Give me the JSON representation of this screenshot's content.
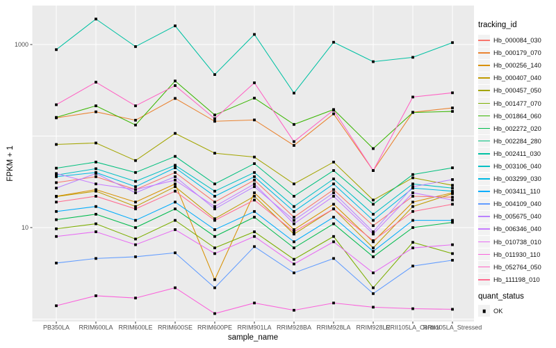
{
  "figure": {
    "y_axis_title": "FPKM + 1",
    "x_axis_title": "sample_name"
  },
  "legend": {
    "tracking_title": "tracking_id",
    "quant_title": "quant_status",
    "quant_value": "OK",
    "quant_marker": "black-square",
    "key_background": "#f2f2f2"
  },
  "colors": {
    "panel_background": "#EBEBEB",
    "gridline": "#FFFFFF",
    "tick_label": "#4D4D4D",
    "tick_mark": "#333333",
    "point": "#000000"
  },
  "chart_data": {
    "type": "line",
    "title": "",
    "xlabel": "sample_name",
    "ylabel": "FPKM + 1",
    "yscale": "log10",
    "ylim": [
      0.94,
      2700
    ],
    "grid": true,
    "legend_position": "right",
    "point_marker": "black-square",
    "yticks": [
      {
        "label": "1000",
        "value": 1000
      },
      {
        "label": "10",
        "value": 10
      }
    ],
    "minor_gridlines_at": [
      100,
      1
    ],
    "categories": [
      "PB350LA",
      "RRIM600LA",
      "RRIM600LE",
      "RRIM600SE",
      "RRIM600PE",
      "RRIM901LA",
      "RRIM928BA",
      "RRIM928LA",
      "RRIM928LE",
      "RRII105LA_Control",
      "RRII105LA_Stressed"
    ],
    "series": [
      {
        "name": "Hb_000084_030",
        "color": "#F8766D",
        "values": [
          31,
          36,
          26,
          40,
          19,
          33,
          13,
          26,
          10.5,
          22,
          21.5
        ]
      },
      {
        "name": "Hb_000179_070",
        "color": "#EA8331",
        "values": [
          158,
          184,
          149,
          258,
          145,
          150,
          79,
          175,
          42,
          182,
          203
        ]
      },
      {
        "name": "Hb_000256_140",
        "color": "#D89000",
        "values": [
          22,
          26,
          19,
          30,
          2.7,
          24,
          9.5,
          18,
          7,
          19,
          24
        ]
      },
      {
        "name": "Hb_000407_040",
        "color": "#C09B00",
        "values": [
          21.8,
          25,
          17,
          28,
          12.5,
          22,
          8.5,
          16,
          6,
          17,
          23.5
        ]
      },
      {
        "name": "Hb_000457_050",
        "color": "#A3A500",
        "values": [
          81,
          84,
          54,
          107,
          65,
          59,
          30,
          52,
          20,
          35,
          29
        ]
      },
      {
        "name": "Hb_001477_070",
        "color": "#7CAE00",
        "values": [
          9.7,
          11,
          7.5,
          12,
          6,
          9,
          4.5,
          8,
          2.2,
          6.9,
          5.2
        ]
      },
      {
        "name": "Hb_001864_060",
        "color": "#39B600",
        "values": [
          160,
          214,
          132,
          400,
          170,
          260,
          134,
          195,
          73,
          181,
          186
        ]
      },
      {
        "name": "Hb_002272_020",
        "color": "#00BB4E",
        "values": [
          12.2,
          14,
          10,
          16,
          8,
          13,
          6,
          11,
          4.8,
          10,
          11.4
        ]
      },
      {
        "name": "Hb_002284_280",
        "color": "#00BF7D",
        "values": [
          44.6,
          52,
          40,
          60,
          30,
          50,
          22,
          42,
          18,
          38,
          45
        ]
      },
      {
        "name": "Hb_002411_030",
        "color": "#00C1A3",
        "values": [
          880,
          1900,
          950,
          1600,
          470,
          1290,
          295,
          1060,
          650,
          725,
          1050
        ]
      },
      {
        "name": "Hb_003106_040",
        "color": "#00BFC4",
        "values": [
          37.5,
          44,
          32,
          48,
          25,
          40,
          17,
          34,
          14,
          30,
          27
        ]
      },
      {
        "name": "Hb_003299_030",
        "color": "#00B9E3",
        "values": [
          36,
          40,
          28,
          45,
          22,
          36,
          15,
          30,
          12,
          27,
          25
        ]
      },
      {
        "name": "Hb_003411_110",
        "color": "#00ACFC",
        "values": [
          15,
          17,
          12,
          19,
          9.5,
          15,
          7,
          13,
          5.5,
          12,
          12
        ]
      },
      {
        "name": "Hb_004109_040",
        "color": "#619CFF",
        "values": [
          4.1,
          4.6,
          4.8,
          5.3,
          2.2,
          6.2,
          3.2,
          4.6,
          1.9,
          3.8,
          4.4
        ]
      },
      {
        "name": "Hb_005675_040",
        "color": "#B983FF",
        "values": [
          27,
          39,
          24,
          36,
          16,
          28,
          12,
          24,
          9,
          28,
          33.5
        ]
      },
      {
        "name": "Hb_006346_040",
        "color": "#C77CFF",
        "values": [
          39,
          30,
          26,
          33,
          17,
          30,
          11,
          22,
          8.5,
          24,
          20
        ]
      },
      {
        "name": "Hb_010738_010",
        "color": "#E76BF3",
        "values": [
          8,
          9,
          6.5,
          9.5,
          5.2,
          8,
          4,
          7,
          3.2,
          6,
          6.5
        ]
      },
      {
        "name": "Hb_011930_110",
        "color": "#FA62DB",
        "values": [
          1.4,
          1.8,
          1.7,
          2.2,
          1.15,
          1.5,
          1.25,
          1.5,
          1.35,
          1.3,
          1.28
        ]
      },
      {
        "name": "Hb_052764_050",
        "color": "#FF61C3",
        "values": [
          220,
          388,
          214,
          356,
          155,
          382,
          87,
          192,
          42,
          267,
          297
        ]
      },
      {
        "name": "Hb_111198_010",
        "color": "#FF6C90",
        "values": [
          19,
          22,
          16,
          25,
          12,
          20,
          9,
          16,
          7.2,
          15,
          18
        ]
      }
    ]
  }
}
